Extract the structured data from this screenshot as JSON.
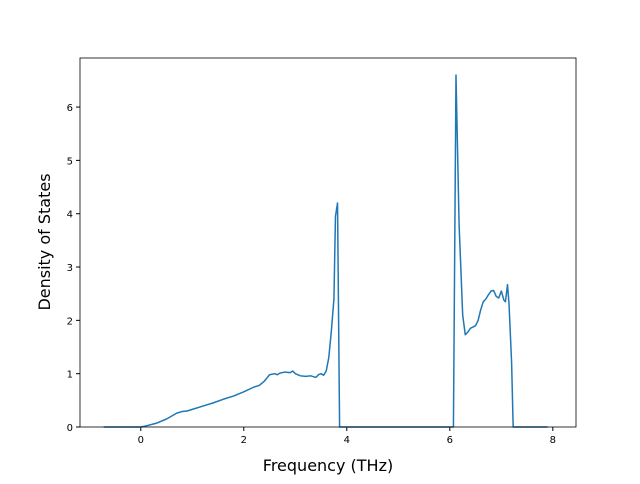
{
  "chart_data": {
    "type": "line",
    "xlabel": "Frequency (THz)",
    "ylabel": "Density of States",
    "x": [
      -0.72,
      0,
      0.1,
      0.3,
      0.5,
      0.7,
      0.8,
      0.9,
      1.0,
      1.2,
      1.4,
      1.6,
      1.8,
      2.0,
      2.2,
      2.3,
      2.4,
      2.45,
      2.5,
      2.6,
      2.65,
      2.7,
      2.8,
      2.9,
      2.95,
      3.0,
      3.1,
      3.2,
      3.3,
      3.4,
      3.45,
      3.5,
      3.55,
      3.6,
      3.65,
      3.7,
      3.75,
      3.78,
      3.82,
      3.86,
      6.07,
      6.12,
      6.18,
      6.25,
      6.3,
      6.35,
      6.4,
      6.5,
      6.55,
      6.6,
      6.65,
      6.7,
      6.75,
      6.8,
      6.85,
      6.9,
      6.95,
      7.0,
      7.05,
      7.08,
      7.12,
      7.15,
      7.2,
      7.23,
      7.9
    ],
    "series": [
      {
        "color": "#1f77b4",
        "values": [
          0,
          0,
          0.02,
          0.07,
          0.15,
          0.26,
          0.29,
          0.3,
          0.33,
          0.39,
          0.45,
          0.52,
          0.58,
          0.66,
          0.75,
          0.78,
          0.86,
          0.92,
          0.98,
          1.0,
          0.98,
          1.01,
          1.03,
          1.02,
          1.05,
          1.0,
          0.96,
          0.95,
          0.96,
          0.93,
          0.98,
          1.0,
          0.97,
          1.05,
          1.3,
          1.8,
          2.4,
          3.95,
          4.2,
          0,
          0,
          6.6,
          3.8,
          2.1,
          1.73,
          1.78,
          1.85,
          1.9,
          2.0,
          2.2,
          2.35,
          2.4,
          2.48,
          2.55,
          2.56,
          2.45,
          2.42,
          2.55,
          2.38,
          2.35,
          2.67,
          2.3,
          1.2,
          0,
          0
        ]
      }
    ],
    "xlim": [
      -1.18,
      8.45
    ],
    "xticks": [
      0,
      2,
      4,
      6,
      8
    ],
    "ylim": [
      0,
      6.92
    ],
    "yticks": [
      0,
      1,
      2,
      3,
      4,
      5,
      6
    ]
  }
}
